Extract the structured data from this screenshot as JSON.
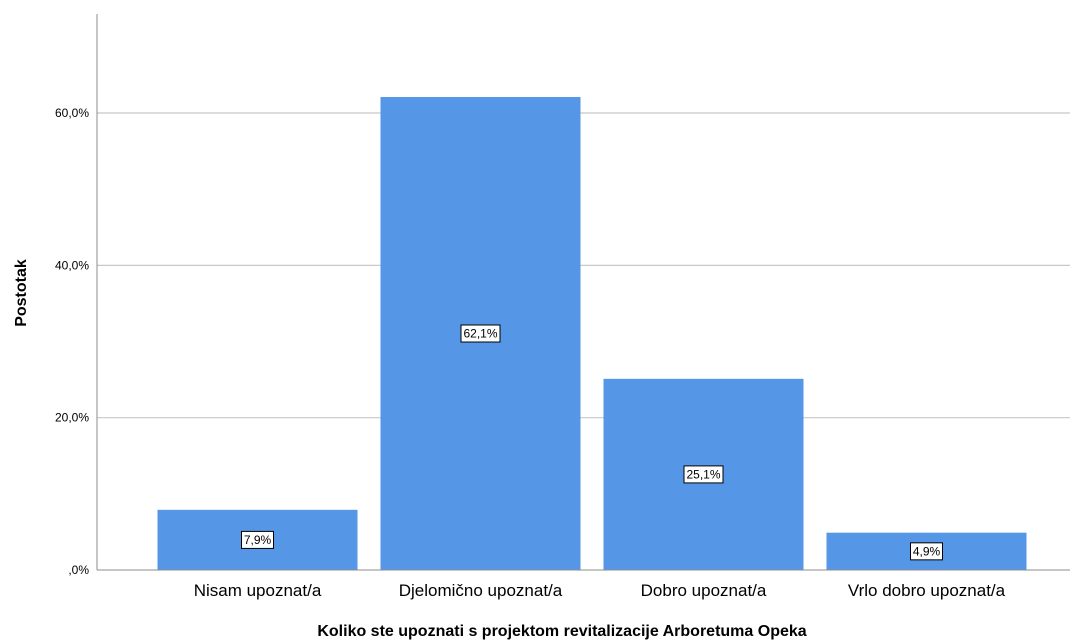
{
  "chart_data": {
    "type": "bar",
    "categories": [
      "Nisam upoznat/a",
      "Djelomično upoznat/a",
      "Dobro upoznat/a",
      "Vrlo dobro upoznat/a"
    ],
    "values": [
      7.9,
      62.1,
      25.1,
      4.9
    ],
    "data_labels": [
      "7,9%",
      "62,1%",
      "25,1%",
      "4,9%"
    ],
    "xlabel": "Koliko ste upoznati s projektom revitalizacije Arboretuma Opeka",
    "ylabel": "Postotak",
    "yticks": [
      0,
      20,
      40,
      60
    ],
    "ytick_labels": [
      ",0%",
      "20,0%",
      "40,0%",
      "60,0%"
    ],
    "ylim": [
      0,
      73
    ],
    "grid": true,
    "bar_color": "#5596e6",
    "grid_color": "#c8c8c8"
  }
}
